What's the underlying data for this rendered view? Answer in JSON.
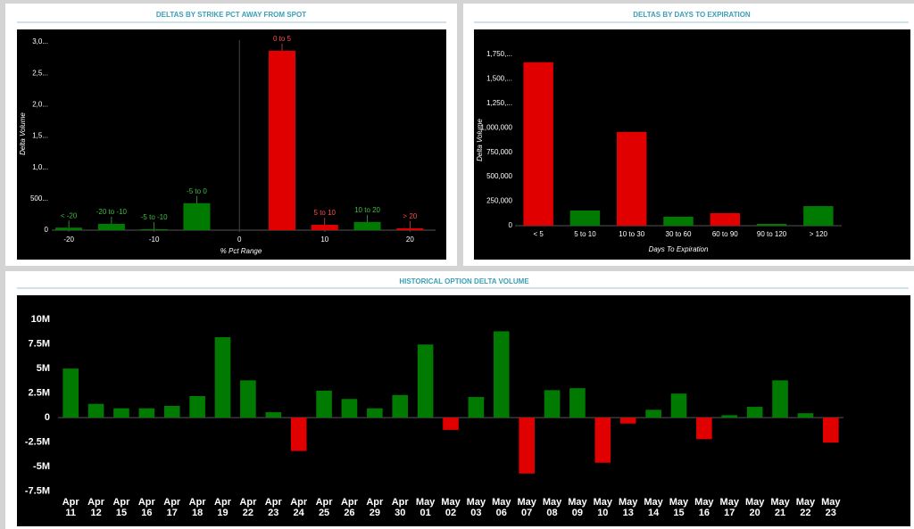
{
  "chart_data": [
    {
      "type": "bar",
      "title": "DELTAS BY STRIKE PCT AWAY FROM SPOT",
      "x_label": "% Pct Range",
      "y_label": "Delta Volume",
      "x": [
        -20,
        -15,
        -10,
        -5,
        5,
        10,
        15,
        20
      ],
      "labels": [
        "< -20",
        "-20 to -10",
        "-5 to -10",
        "-5 to 0",
        "0 to 5",
        "5 to 10",
        "10 to 20",
        "> 20"
      ],
      "values": [
        40,
        100,
        15,
        430,
        2860,
        85,
        130,
        30
      ],
      "colors": [
        "#007a00",
        "#007a00",
        "#007a00",
        "#007a00",
        "#e00000",
        "#e00000",
        "#007a00",
        "#e00000"
      ],
      "xlim": [
        -22,
        23
      ],
      "xticks": [
        -20,
        -10,
        0,
        10,
        20
      ],
      "ylim": [
        0,
        3100
      ],
      "yticks": [
        0,
        {
          "value": 500,
          "label": "500..."
        },
        {
          "value": 1000,
          "label": "1,0..."
        },
        {
          "value": 1500,
          "label": "1,5..."
        },
        {
          "value": 2000,
          "label": "2,0..."
        },
        {
          "value": 2500,
          "label": "2,5..."
        },
        {
          "value": 3000,
          "label": "3,0..."
        }
      ]
    },
    {
      "type": "bar",
      "title": "DELTAS BY DAYS TO EXPIRATION",
      "x_label": "Days To Expiration",
      "y_label": "Delta Volume",
      "categories": [
        "< 5",
        "5 to 10",
        "10 to 30",
        "30 to 60",
        "60 to 90",
        "90 to 120",
        "> 120"
      ],
      "values": [
        1670000,
        155000,
        958000,
        91000,
        128000,
        18000,
        200000
      ],
      "colors": [
        "#e00000",
        "#007a00",
        "#e00000",
        "#007a00",
        "#e00000",
        "#007a00",
        "#007a00"
      ],
      "ylim": [
        0,
        1850000
      ],
      "yticks": [
        0,
        {
          "value": 250000,
          "label": "250,000"
        },
        {
          "value": 500000,
          "label": "500,000"
        },
        {
          "value": 750000,
          "label": "750,000"
        },
        {
          "value": 1000000,
          "label": "1,000,000"
        },
        {
          "value": 1250000,
          "label": "1,250,..."
        },
        {
          "value": 1500000,
          "label": "1,500,..."
        },
        {
          "value": 1750000,
          "label": "1,750,..."
        }
      ]
    },
    {
      "type": "bar",
      "title": "HISTORICAL OPTION DELTA VOLUME",
      "categories": [
        "Apr 11",
        "Apr 12",
        "Apr 15",
        "Apr 16",
        "Apr 17",
        "Apr 18",
        "Apr 19",
        "Apr 22",
        "Apr 23",
        "Apr 24",
        "Apr 25",
        "Apr 26",
        "Apr 29",
        "Apr 30",
        "May 01",
        "May 02",
        "May 03",
        "May 06",
        "May 07",
        "May 08",
        "May 09",
        "May 10",
        "May 13",
        "May 14",
        "May 15",
        "May 16",
        "May 17",
        "May 20",
        "May 21",
        "May 22",
        "May 23"
      ],
      "values": [
        5000000,
        1400000,
        950000,
        950000,
        1200000,
        2200000,
        8200000,
        3800000,
        550000,
        -3400000,
        2750000,
        1900000,
        950000,
        2300000,
        7450000,
        -1250000,
        2100000,
        8800000,
        -5700000,
        2800000,
        3000000,
        -4600000,
        -600000,
        800000,
        2450000,
        -2200000,
        250000,
        1100000,
        3800000,
        450000,
        -2550000
      ],
      "colors": {
        "positive": "#007a00",
        "negative": "#e00000"
      },
      "ylim": [
        -7900000,
        11200000
      ],
      "yticks": [
        {
          "value": -7500000,
          "label": "-7.5M"
        },
        {
          "value": -5000000,
          "label": "-5M"
        },
        {
          "value": -2500000,
          "label": "-2.5M"
        },
        0,
        {
          "value": 2500000,
          "label": "2.5M"
        },
        {
          "value": 5000000,
          "label": "5M"
        },
        {
          "value": 7500000,
          "label": "7.5M"
        },
        {
          "value": 10000000,
          "label": "10M"
        }
      ]
    }
  ]
}
